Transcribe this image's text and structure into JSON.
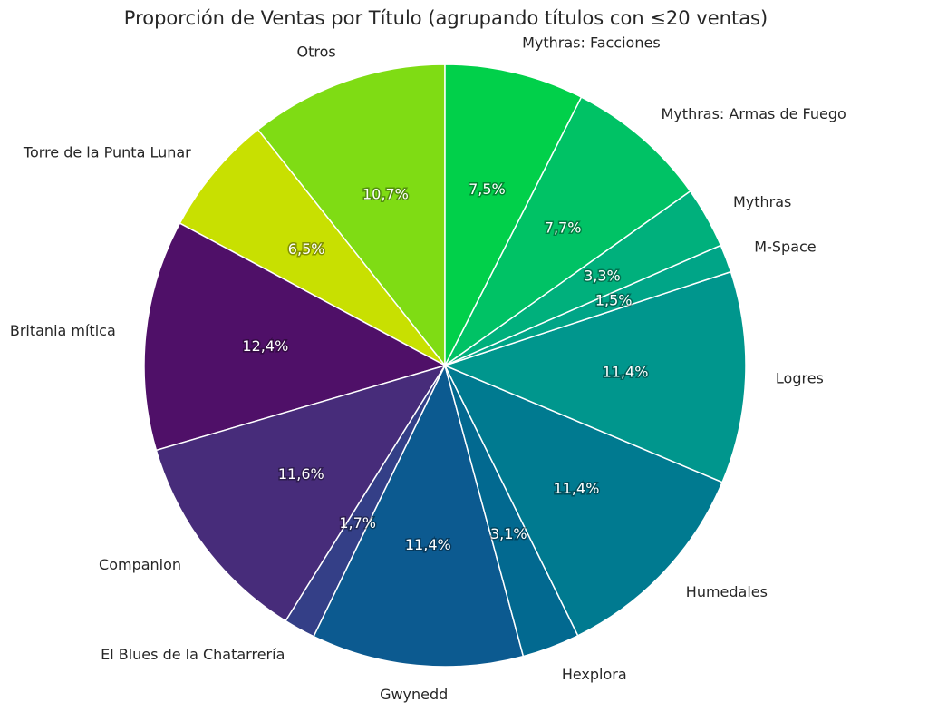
{
  "chart_data": {
    "type": "pie",
    "title": "Proporción de Ventas por Título (agrupando títulos con ≤20 ventas)",
    "start_angle_deg": 90,
    "direction": "counterclockwise",
    "slices": [
      {
        "label": "Otros",
        "value": 10.7,
        "pct_label": "10,7%",
        "color": "#7fdc14"
      },
      {
        "label": "Torre de la Punta Lunar",
        "value": 6.5,
        "pct_label": "6,5%",
        "color": "#c8e001"
      },
      {
        "label": "Britania mítica",
        "value": 12.4,
        "pct_label": "12,4%",
        "color": "#4f1068"
      },
      {
        "label": "Companion",
        "value": 11.6,
        "pct_label": "11,6%",
        "color": "#472c7a"
      },
      {
        "label": "El Blues de la Chatarrería",
        "value": 1.7,
        "pct_label": "1,7%",
        "color": "#343f87"
      },
      {
        "label": "Gwynedd",
        "value": 11.4,
        "pct_label": "11,4%",
        "color": "#0c5a90"
      },
      {
        "label": "Hexplora",
        "value": 3.1,
        "pct_label": "3,1%",
        "color": "#026990"
      },
      {
        "label": "Humedales",
        "value": 11.4,
        "pct_label": "11,4%",
        "color": "#007a90"
      },
      {
        "label": "Logres",
        "value": 11.4,
        "pct_label": "11,4%",
        "color": "#00968d"
      },
      {
        "label": "M-Space",
        "value": 1.5,
        "pct_label": "1,5%",
        "color": "#00a587"
      },
      {
        "label": "Mythras",
        "value": 3.3,
        "pct_label": "3,3%",
        "color": "#00b07c"
      },
      {
        "label": "Mythras: Armas de Fuego",
        "value": 7.7,
        "pct_label": "7,7%",
        "color": "#00c265"
      },
      {
        "label": "Mythras: Facciones",
        "value": 7.5,
        "pct_label": "7,5%",
        "color": "#01d04a"
      }
    ]
  }
}
